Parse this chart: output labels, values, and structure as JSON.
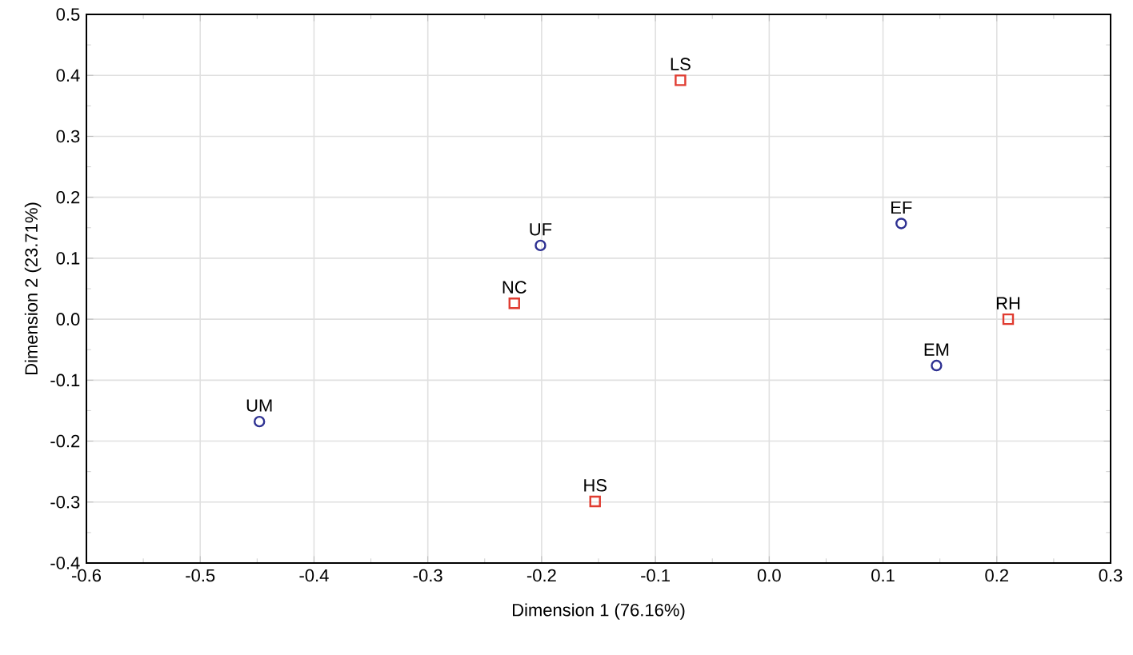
{
  "chart_data": {
    "type": "scatter",
    "xlabel": "Dimension 1 (76.16%)",
    "ylabel": "Dimension 2 (23.71%)",
    "xlim": [
      -0.6,
      0.3
    ],
    "ylim": [
      -0.4,
      0.5
    ],
    "xticks": [
      -0.6,
      -0.5,
      -0.4,
      -0.3,
      -0.2,
      -0.1,
      {
        "value": 0,
        "label": "0.0"
      },
      0.1,
      0.2,
      0.3
    ],
    "yticks": [
      -0.4,
      -0.3,
      -0.2,
      -0.1,
      {
        "value": 0,
        "label": "0.0"
      },
      0.1,
      0.2,
      0.3,
      0.4,
      0.5
    ],
    "grid": true,
    "series": [
      {
        "color": "#2e3192",
        "marker": "circle",
        "x": [
          -0.201,
          0.116,
          0.147,
          -0.448
        ],
        "values": [
          0.121,
          0.157,
          -0.076,
          -0.168
        ]
      },
      {
        "color": "#e03c31",
        "marker": "square",
        "x": [
          -0.078,
          -0.224,
          0.21,
          -0.153
        ],
        "values": [
          0.392,
          0.026,
          0.0,
          -0.299
        ]
      }
    ],
    "annotations": [
      {
        "text": "UF",
        "x": -0.201,
        "y": 0.121
      },
      {
        "text": "EF",
        "x": 0.116,
        "y": 0.157
      },
      {
        "text": "EM",
        "x": 0.147,
        "y": -0.076
      },
      {
        "text": "UM",
        "x": -0.448,
        "y": -0.168
      },
      {
        "text": "LS",
        "x": -0.078,
        "y": 0.392
      },
      {
        "text": "NC",
        "x": -0.224,
        "y": 0.026
      },
      {
        "text": "RH",
        "x": 0.21,
        "y": 0.0
      },
      {
        "text": "HS",
        "x": -0.153,
        "y": -0.299
      }
    ]
  }
}
